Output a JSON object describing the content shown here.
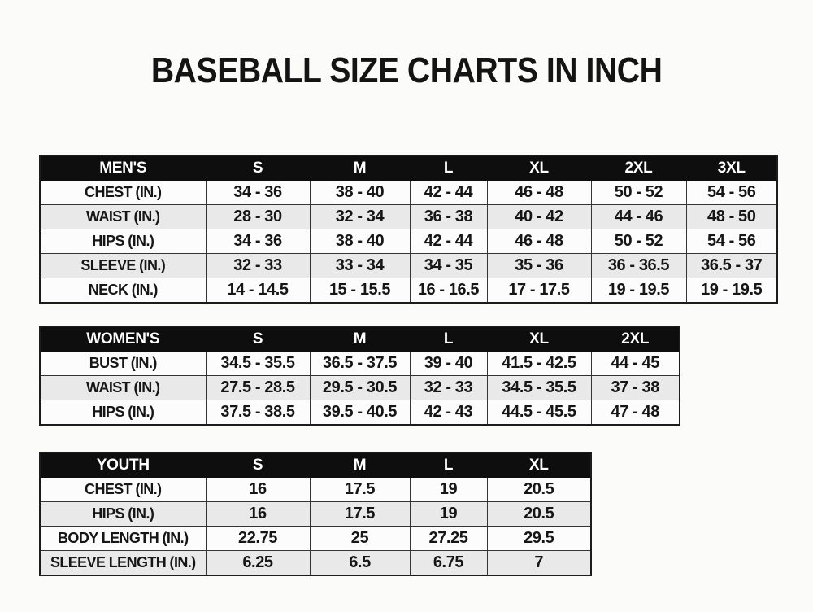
{
  "page": {
    "title": "BASEBALL SIZE CHARTS IN INCH"
  },
  "colors": {
    "page_background": "#fbfbfa",
    "table_header_bg": "#0e0e0e",
    "table_header_text": "#ffffff",
    "row_bg": "#fcfcfc",
    "row_alt_bg": "#e9e9e9",
    "border": "#343434",
    "text": "#161616"
  },
  "chart_data": [
    {
      "type": "table",
      "name": "mens",
      "header": [
        "MEN'S",
        "S",
        "M",
        "L",
        "XL",
        "2XL",
        "3XL"
      ],
      "rows": [
        [
          "CHEST (IN.)",
          "34 - 36",
          "38 - 40",
          "42 - 44",
          "46 - 48",
          "50 - 52",
          "54 - 56"
        ],
        [
          "WAIST (IN.)",
          "28 - 30",
          "32 - 34",
          "36 - 38",
          "40 - 42",
          "44 - 46",
          "48 - 50"
        ],
        [
          "HIPS (IN.)",
          "34 - 36",
          "38 - 40",
          "42 - 44",
          "46 - 48",
          "50 - 52",
          "54 - 56"
        ],
        [
          "SLEEVE (IN.)",
          "32 - 33",
          "33 - 34",
          "34 - 35",
          "35 - 36",
          "36 - 36.5",
          "36.5 - 37"
        ],
        [
          "NECK (IN.)",
          "14 - 14.5",
          "15 - 15.5",
          "16 - 16.5",
          "17 - 17.5",
          "19 - 19.5",
          "19 - 19.5"
        ]
      ]
    },
    {
      "type": "table",
      "name": "womens",
      "header": [
        "WOMEN'S",
        "S",
        "M",
        "L",
        "XL",
        "2XL"
      ],
      "rows": [
        [
          "BUST (IN.)",
          "34.5 - 35.5",
          "36.5 - 37.5",
          "39 - 40",
          "41.5 - 42.5",
          "44 - 45"
        ],
        [
          "WAIST (IN.)",
          "27.5 - 28.5",
          "29.5 - 30.5",
          "32 - 33",
          "34.5 - 35.5",
          "37 - 38"
        ],
        [
          "HIPS (IN.)",
          "37.5 - 38.5",
          "39.5 - 40.5",
          "42 - 43",
          "44.5 - 45.5",
          "47 - 48"
        ]
      ]
    },
    {
      "type": "table",
      "name": "youth",
      "header": [
        "YOUTH",
        "S",
        "M",
        "L",
        "XL"
      ],
      "rows": [
        [
          "CHEST (IN.)",
          "16",
          "17.5",
          "19",
          "20.5"
        ],
        [
          "HIPS (IN.)",
          "16",
          "17.5",
          "19",
          "20.5"
        ],
        [
          "BODY LENGTH (IN.)",
          "22.75",
          "25",
          "27.25",
          "29.5"
        ],
        [
          "SLEEVE LENGTH (IN.)",
          "6.25",
          "6.5",
          "6.75",
          "7"
        ]
      ]
    }
  ]
}
